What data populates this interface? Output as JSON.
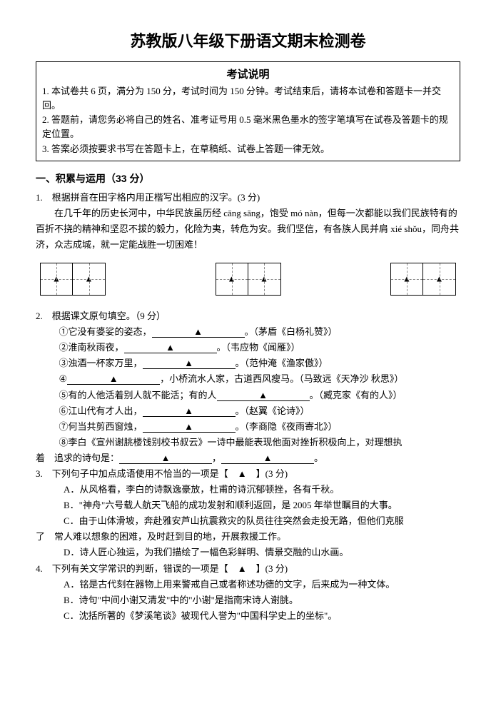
{
  "title": {
    "text": "苏教版八年级下册语文期末检测卷",
    "fontsize": 22
  },
  "instructions": {
    "heading": "考试说明",
    "lines": [
      "1. 本试卷共 6 页，满分为 150 分，考试时间为 150 分钟。考试结束后，请将本试卷和答题卡一并交回。",
      "2. 答题前，请您务必将自己的姓名、准考证号用 0.5 毫米黑色墨水的签字笔填写在试卷及答题卡的规定位置。",
      "3. 答案必须按要求书写在答题卡上，在草稿纸、试卷上答题一律无效。"
    ]
  },
  "section1": {
    "heading": "一、积累与运用（33 分）"
  },
  "q1": {
    "stem": "1.　根据拼音在田字格内用正楷写出相应的汉字。(3 分)",
    "para_parts": [
      "在几千年的历史长河中，中华民族虽历经 cāng sāng，饱受 mó nàn，但每一次都能以我们民族特有的百折不挠的精神和坚忍不拔的毅力，化险为夷，转危为安。我们坚信，有各族人民并肩 xié shǒu，同舟共济，众志成城，就一定能战胜一切困难！"
    ]
  },
  "q2": {
    "stem": "2.　根据课文原句填空。（9 分）",
    "items": [
      {
        "pre": "①它没有婆娑的姿态，",
        "post": "。（茅盾《白杨礼赞》）"
      },
      {
        "pre": "②淮南秋雨夜，",
        "post": "。（韦应物《闻雁》）"
      },
      {
        "pre": "③浊酒一杯家万里，",
        "post": "。（范仲淹《渔家傲》）"
      },
      {
        "pre": "④",
        "post": "，小桥流水人家，古道西风瘦马。（马致远《天净沙 秋思》）"
      },
      {
        "pre": "⑤有的人他活着别人就不能活；有的人",
        "post": "。（臧克家《有的人》）"
      },
      {
        "pre": "⑥江山代有才人出，",
        "post": "。（赵翼《论诗》）"
      },
      {
        "pre": "⑦何当共剪西窗烛，",
        "post": "。（李商隐《夜雨寄北》）"
      }
    ],
    "eight_pre": "⑧李白《宣州谢朓楼饯别校书叔云》一诗中最能表现他面对挫折积极向上，对理想执",
    "eight_post_prefix": "着　追求的诗句是：",
    "eight_sep": "，",
    "eight_end": "。"
  },
  "q3": {
    "stem_a": "3.　下列句子中加点成语使用不恰当的一项是【　",
    "stem_b": "　】(3 分)",
    "optA": "A．从风格看，李白的诗飘逸豪放，杜甫的诗沉郁顿挫，各有千秋。",
    "optB": "B．\"神舟\"六号载人航天飞船的成功发射和顺利返回，是 2005 年举世瞩目的大事。",
    "optC_a": "C．由于山体滑坡，奔赴雅安芦山抗震救灾的队员往往突然会走投无路，但他们克服",
    "optC_b": "了　常人难以想象的困难，及时赶到目的地，开展救援工作。",
    "optD": "D．诗人匠心独运，为我们描绘了一幅色彩鲜明、情景交融的山水画。"
  },
  "q4": {
    "stem_a": "4.　下列有关文学常识的判断，错误的一项是【　",
    "stem_b": "　】(3 分)",
    "optA": "A．铭是古代刻在器物上用来警戒自己或者称述功德的文字，后来成为一种文体。",
    "optB": "B．诗句\"中间小谢又清发\"中的\"小谢\"是指南宋诗人谢朓。",
    "optC": "C．沈括所著的《梦溪笔谈》被现代人誉为\"中国科学史上的坐标\"。"
  },
  "marks": {
    "triangle": "▲"
  }
}
